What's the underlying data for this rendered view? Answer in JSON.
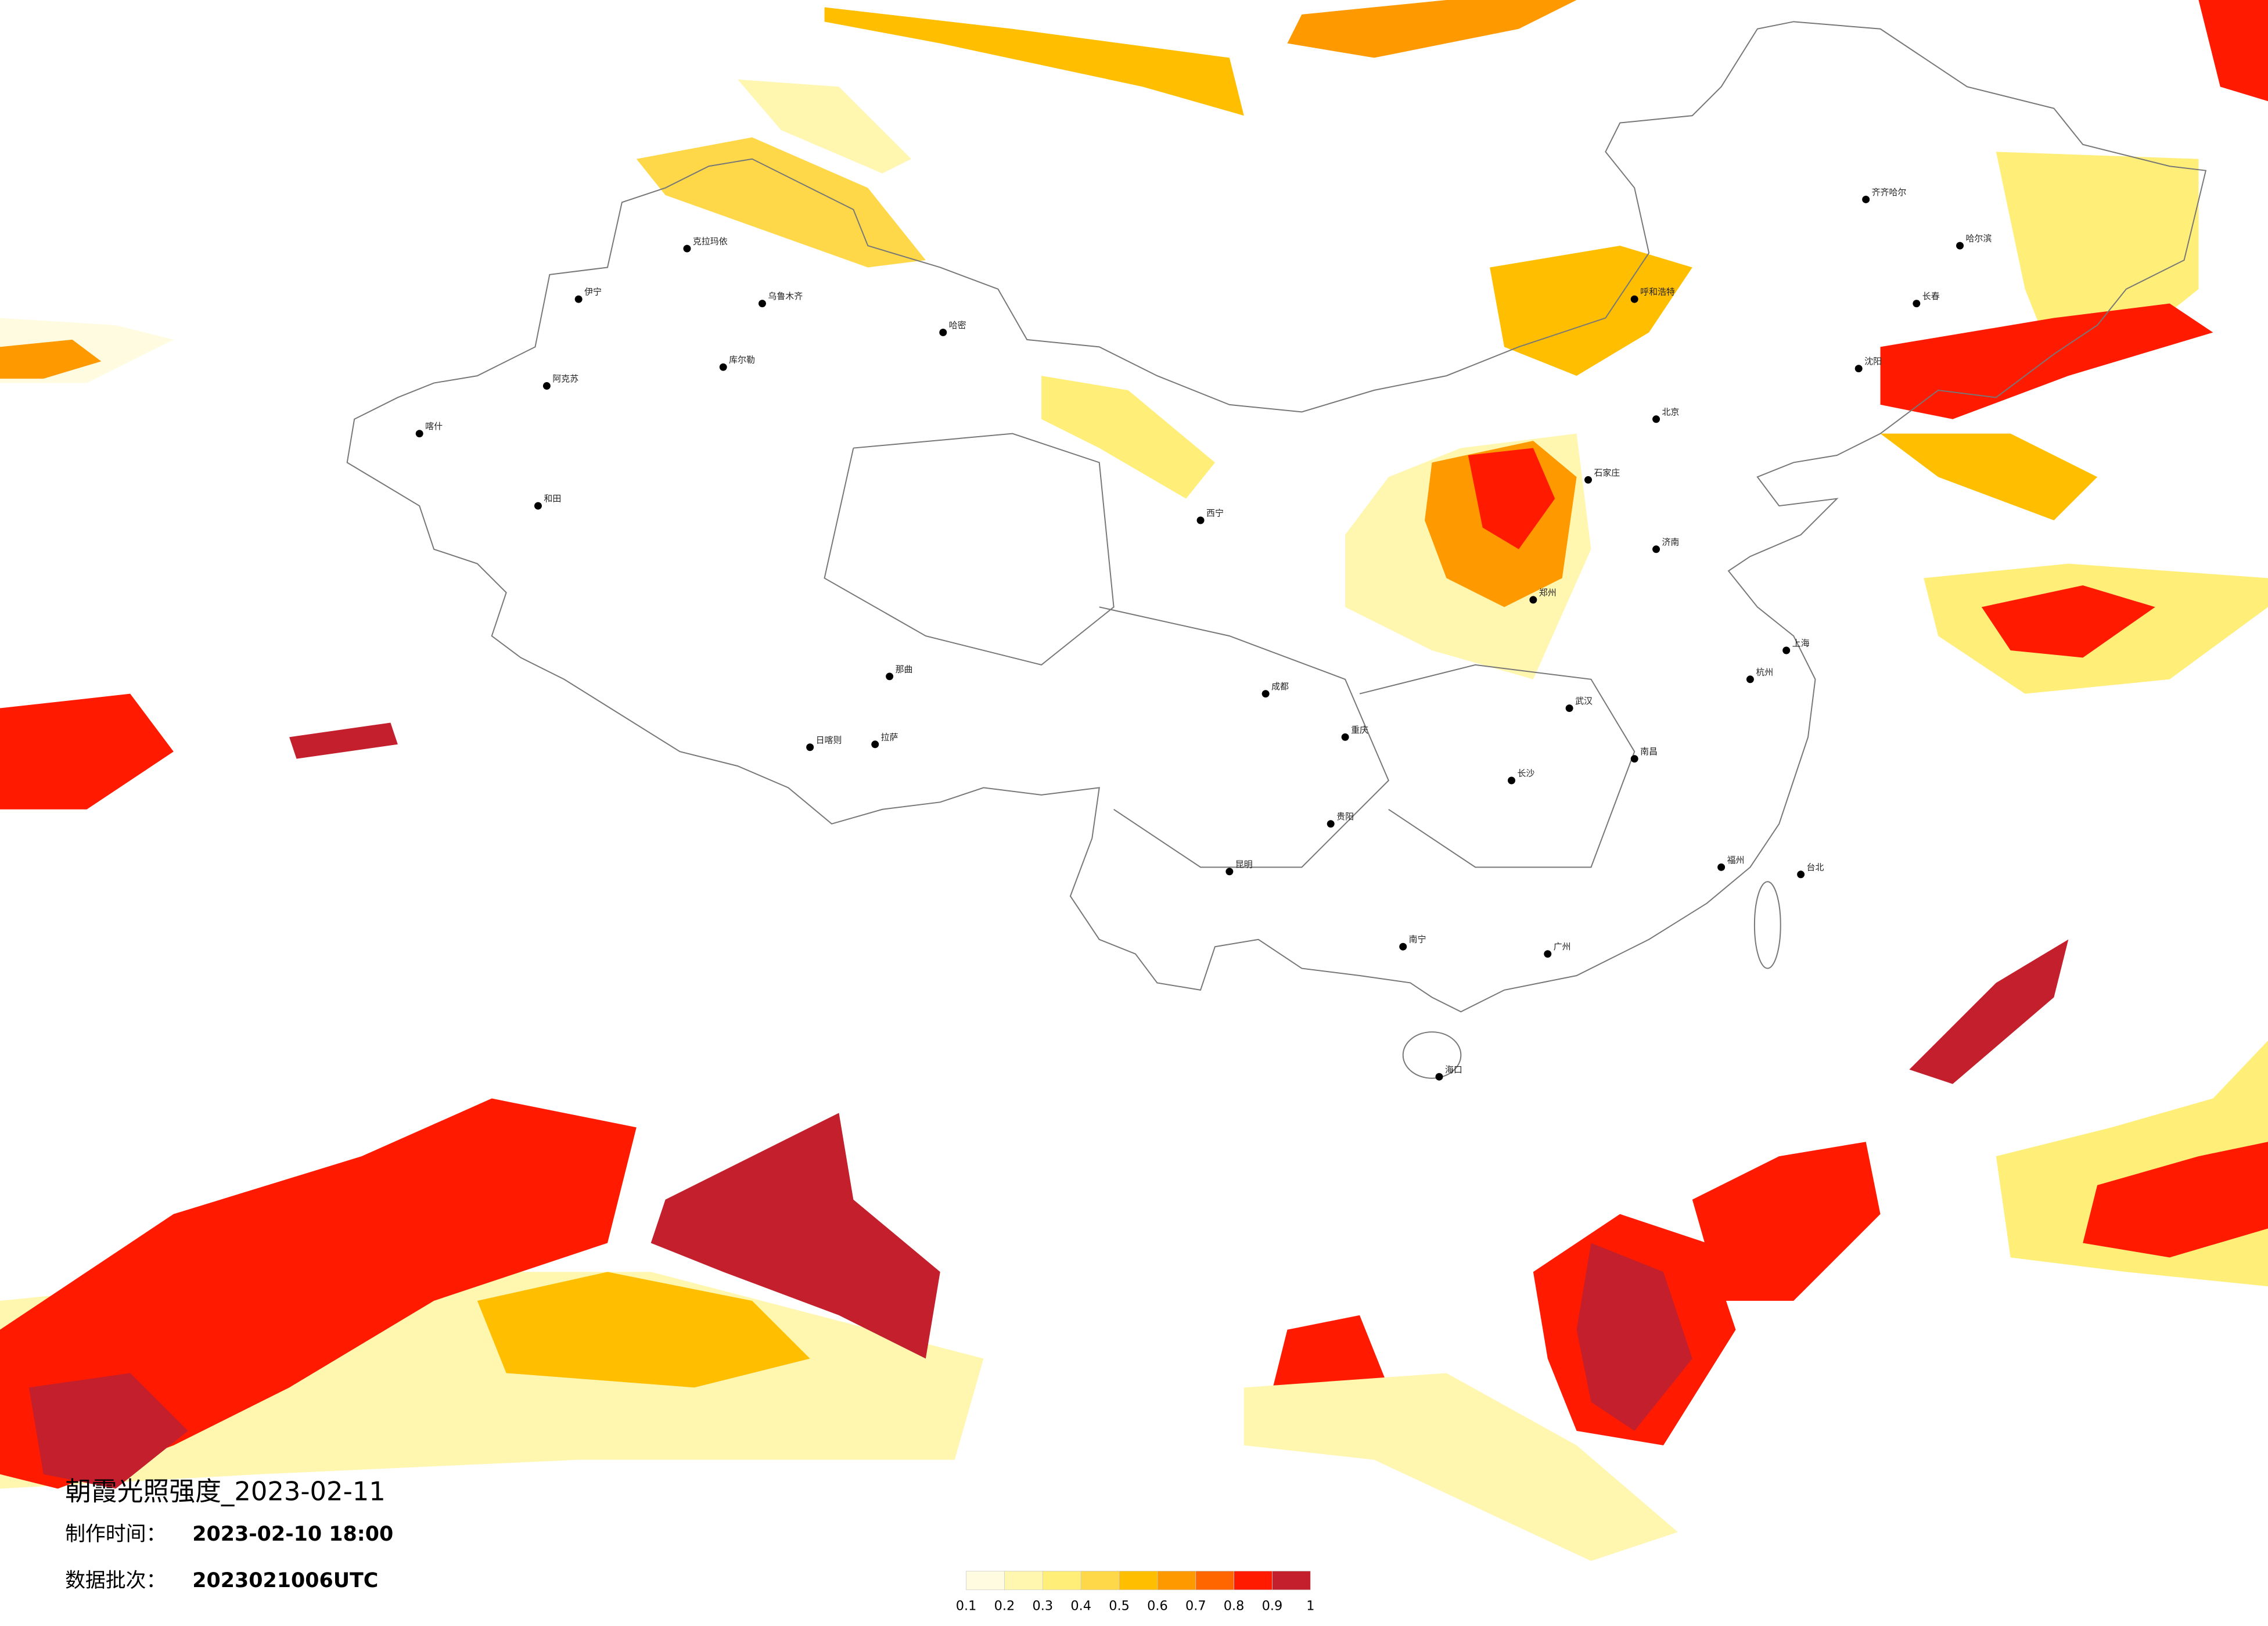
{
  "title": "朝霞光照强度_2023-02-11",
  "info": [
    {
      "label": "制作时间：",
      "value": "2023-02-10 18:00"
    },
    {
      "label": "数据批次：",
      "value": "2023021006UTC"
    }
  ],
  "legend": {
    "colors": [
      "#fffbe0",
      "#fff6b0",
      "#ffee78",
      "#ffd84a",
      "#ffbf00",
      "#ff9900",
      "#ff6600",
      "#ff1a00",
      "#c41f2c"
    ],
    "ticks": [
      0.1,
      0.2,
      0.3,
      0.4,
      0.5,
      0.6,
      0.7,
      0.8,
      0.9,
      1
    ]
  },
  "cities": [
    "克拉玛依",
    "伊宁",
    "乌鲁木齐",
    "哈密",
    "库尔勒",
    "阿克苏",
    "喀什",
    "和田",
    "拉萨",
    "日喀则",
    "那曲",
    "西宁",
    "呼和浩特",
    "齐齐哈尔",
    "哈尔滨",
    "长春",
    "沈阳",
    "北京",
    "石家庄",
    "济南",
    "郑州",
    "武汉",
    "长沙",
    "南昌",
    "福州",
    "台北",
    "广州",
    "南宁",
    "昆明",
    "贵阳",
    "重庆",
    "成都",
    "上海",
    "杭州",
    "海口"
  ]
}
